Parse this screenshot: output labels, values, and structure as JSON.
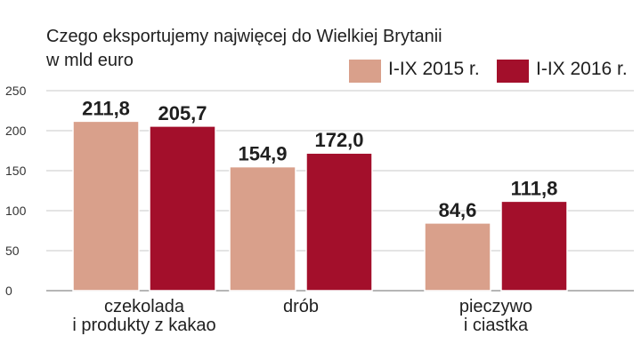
{
  "chart_data": {
    "type": "bar",
    "title": "Czego eksportujemy najwięcej do Wielkiej Brytanii",
    "subtitle": "w mld euro",
    "categories": [
      [
        "czekolada",
        "i produkty z kakao"
      ],
      [
        "drób"
      ],
      [
        "pieczywo",
        "i ciastka"
      ]
    ],
    "series": [
      {
        "name": "I-IX 2015 r.",
        "color": "#d9a08b",
        "values": [
          211.8,
          154.9,
          84.6
        ],
        "labels": [
          "211,8",
          "154,9",
          "84,6"
        ]
      },
      {
        "name": "I-IX 2016 r.",
        "color": "#a30f2b",
        "values": [
          205.7,
          172.0,
          111.8
        ],
        "labels": [
          "205,7",
          "172,0",
          "111,8"
        ]
      }
    ],
    "ylim": [
      0,
      250
    ],
    "yticks": [
      0,
      50,
      100,
      150,
      200,
      250
    ],
    "xlabel": "",
    "ylabel": "",
    "grid": true,
    "legend_position": "top-right"
  }
}
